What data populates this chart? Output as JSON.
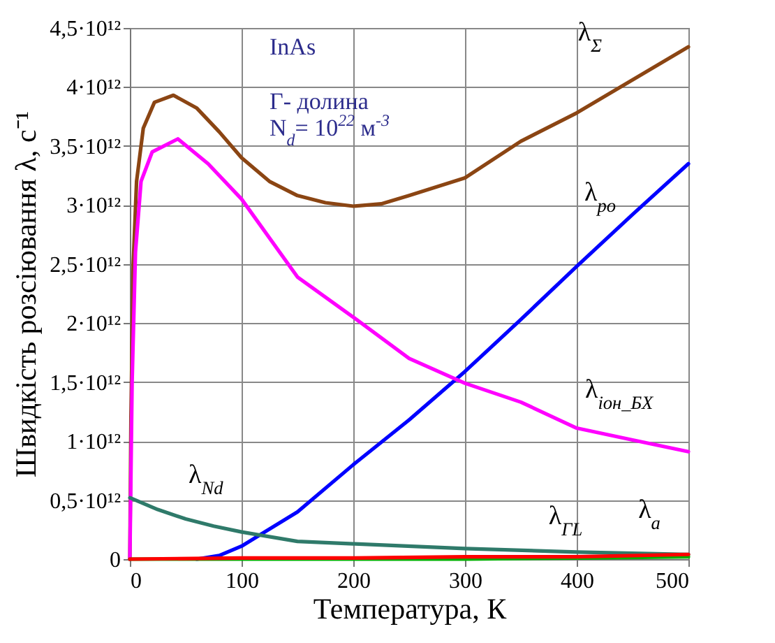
{
  "chart_data": {
    "type": "line",
    "xlabel": "Температура, К",
    "ylabel": "Швидкість розсіювання λ, с⁻¹",
    "annotations": [
      "InAs",
      "Γ- долина",
      "N$_{d}$= 10$^{22}$ м$^{-3}$"
    ],
    "xlim": [
      0,
      500
    ],
    "xticks": [
      0,
      100,
      200,
      300,
      400,
      500
    ],
    "ylim": [
      0,
      4500000000000.0
    ],
    "yticks": [
      {
        "value": 0,
        "label": "0"
      },
      {
        "value": 500000000000.0,
        "label": "0,5·10¹²"
      },
      {
        "value": 1000000000000.0,
        "label": "1·10¹²"
      },
      {
        "value": 1500000000000.0,
        "label": "1,5·10¹²"
      },
      {
        "value": 2000000000000.0,
        "label": "2·10¹²"
      },
      {
        "value": 2500000000000.0,
        "label": "2,5·10¹²"
      },
      {
        "value": 3000000000000.0,
        "label": "3·10¹²"
      },
      {
        "value": 3500000000000.0,
        "label": "3,5·10¹²"
      },
      {
        "value": 4000000000000.0,
        "label": "4·10¹²"
      },
      {
        "value": 4500000000000.0,
        "label": "4,5·10¹²"
      }
    ],
    "grid": true,
    "line_style": "solid",
    "marker": "none",
    "series": [
      {
        "name": "λ$_{Σ}$",
        "color": "#8b4513",
        "x": [
          0,
          1,
          3,
          6,
          12,
          22,
          39,
          60,
          80,
          100,
          125,
          150,
          175,
          200,
          225,
          250,
          300,
          350,
          400,
          450,
          500
        ],
        "values": [
          0,
          1200000000000.0,
          2500000000000.0,
          3200000000000.0,
          3650000000000.0,
          3870000000000.0,
          3930000000000.0,
          3820000000000.0,
          3620000000000.0,
          3400000000000.0,
          3200000000000.0,
          3080000000000.0,
          3020000000000.0,
          2990000000000.0,
          3010000000000.0,
          3080000000000.0,
          3230000000000.0,
          3540000000000.0,
          3780000000000.0,
          4060000000000.0,
          4340000000000.0
        ]
      },
      {
        "name": "λ$_{po}$",
        "color": "#0000ff",
        "x": [
          60,
          80,
          100,
          150,
          200,
          250,
          300,
          350,
          400,
          450,
          500
        ],
        "values": [
          0,
          30000000000.0,
          110000000000.0,
          400000000000.0,
          800000000000.0,
          1180000000000.0,
          1590000000000.0,
          2030000000000.0,
          2480000000000.0,
          2920000000000.0,
          3350000000000.0
        ]
      },
      {
        "name": "λ$_{іон_БХ}$",
        "color": "#ff00ff",
        "x": [
          0,
          2,
          5,
          10,
          20,
          43,
          70,
          100,
          150,
          200,
          250,
          300,
          350,
          400,
          450,
          500
        ],
        "values": [
          0,
          1500000000000.0,
          2600000000000.0,
          3200000000000.0,
          3450000000000.0,
          3560000000000.0,
          3350000000000.0,
          3050000000000.0,
          2390000000000.0,
          2050000000000.0,
          1700000000000.0,
          1490000000000.0,
          1330000000000.0,
          1110000000000.0,
          1010000000000.0,
          910000000000.0
        ]
      },
      {
        "name": "λ$_{Nd}$",
        "color": "#2f7a6a",
        "x": [
          0,
          25,
          50,
          75,
          100,
          150,
          200,
          300,
          400,
          500
        ],
        "values": [
          520000000000.0,
          420000000000.0,
          340000000000.0,
          280000000000.0,
          230000000000.0,
          150000000000.0,
          130000000000.0,
          90000000000.0,
          60000000000.0,
          40000000000.0
        ]
      },
      {
        "name": "λ$_{ΓL}$",
        "color": "#00b000",
        "x": [
          0,
          300,
          400,
          500
        ],
        "values": [
          0,
          0,
          10000000000.0,
          20000000000.0
        ]
      },
      {
        "name": "λ$_{a}$",
        "color": "#ff0000",
        "x": [
          0,
          100,
          200,
          300,
          400,
          500
        ],
        "values": [
          0,
          10000000000.0,
          10000000000.0,
          20000000000.0,
          20000000000.0,
          40000000000.0
        ]
      }
    ]
  }
}
